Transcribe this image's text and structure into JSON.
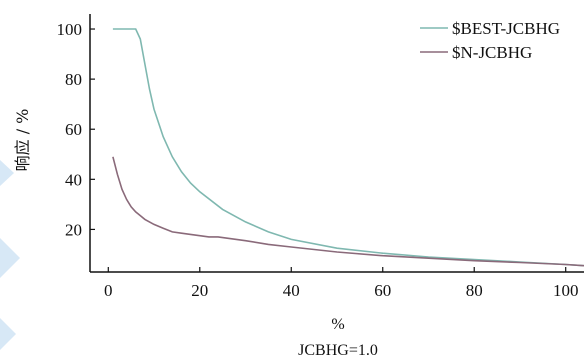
{
  "chart_data": {
    "type": "line",
    "title": "",
    "xlabel": "%",
    "xlabel2": "JCBHG=1.0",
    "ylabel": "响应 / %",
    "xlim": [
      -4,
      104
    ],
    "ylim": [
      3,
      106
    ],
    "xticks": [
      0,
      20,
      40,
      60,
      80,
      100
    ],
    "yticks": [
      20,
      40,
      60,
      80,
      100
    ],
    "grid": false,
    "legend_position": "top-right",
    "series": [
      {
        "name": "$BEST-JCBHG",
        "color": "#7fb8b0",
        "x": [
          1,
          3,
          5,
          6,
          7,
          8,
          9,
          10,
          12,
          14,
          16,
          18,
          20,
          25,
          30,
          35,
          40,
          50,
          60,
          70,
          80,
          90,
          100,
          104
        ],
        "y": [
          100,
          100,
          100,
          100,
          96,
          86,
          76,
          68,
          57,
          49,
          43,
          38.5,
          35,
          28,
          23,
          19,
          16,
          12.5,
          10.5,
          9,
          8,
          7,
          6,
          5.5
        ]
      },
      {
        "name": "$N-JCBHG",
        "color": "#8a6a7a",
        "x": [
          1,
          2,
          3,
          4,
          5,
          6,
          7,
          8,
          10,
          12,
          14,
          16,
          18,
          20,
          22,
          24,
          26,
          28,
          30,
          35,
          40,
          50,
          60,
          70,
          80,
          90,
          100,
          104
        ],
        "y": [
          49,
          42,
          36,
          32,
          29,
          27,
          25.5,
          24,
          22,
          20.5,
          19,
          18.5,
          18,
          17.5,
          17,
          17,
          16.5,
          16,
          15.5,
          14,
          13,
          11,
          9.5,
          8.5,
          7.5,
          6.8,
          6,
          5.5
        ]
      }
    ]
  },
  "colors": {
    "axis": "#111111",
    "decoration": "#d7e8f6"
  }
}
